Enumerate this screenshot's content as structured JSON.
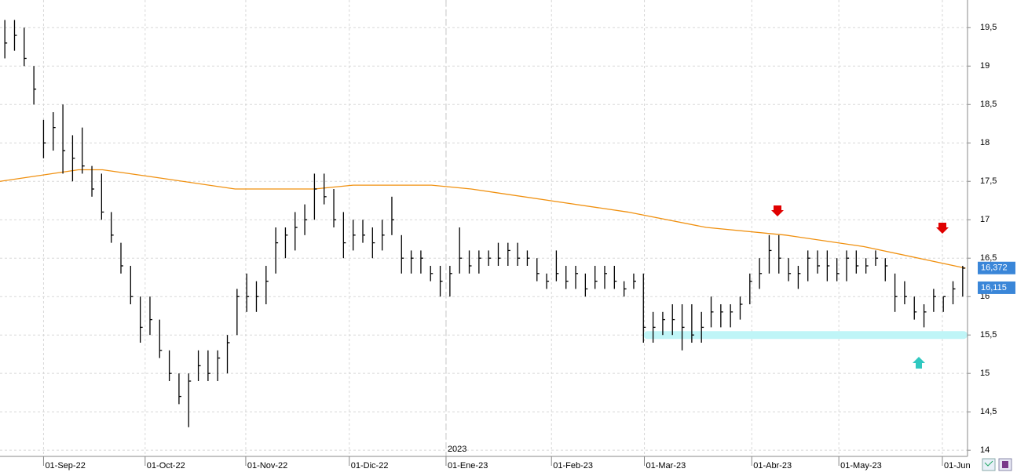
{
  "chart_data": {
    "type": "ohlc",
    "xlim": [
      -0.5,
      99.5
    ],
    "ylim": [
      13.92,
      19.86
    ],
    "yticks": [
      14,
      {
        "value": 14.5,
        "label": "14,5"
      },
      15,
      {
        "value": 15.5,
        "label": "15,5"
      },
      16,
      {
        "value": 16.5,
        "label": "16,5"
      },
      17,
      {
        "value": 17.5,
        "label": "17,5"
      },
      18,
      {
        "value": 18.5,
        "label": "18,5"
      },
      19,
      {
        "value": 19.5,
        "label": "19,5"
      }
    ],
    "xticks": [
      {
        "value": 4,
        "label": "01-Sep-22"
      },
      {
        "value": 14.5,
        "label": "01-Oct-22"
      },
      {
        "value": 24.9,
        "label": "01-Nov-22"
      },
      {
        "value": 35.6,
        "label": "01-Dic-22"
      },
      {
        "value": 45.6,
        "label": "01-Ene-23"
      },
      {
        "value": 56.5,
        "label": "01-Feb-23"
      },
      {
        "value": 66.1,
        "label": "01-Mar-23"
      },
      {
        "value": 77.2,
        "label": "01-Abr-23"
      },
      {
        "value": 86.2,
        "label": "01-May-23"
      },
      {
        "value": 96.9,
        "label": "01-Jun"
      }
    ],
    "year_marker": {
      "value": 45.6,
      "label": "2023"
    },
    "grid": true,
    "color": "#000000",
    "highs": [
      19.6,
      19.6,
      19.5,
      19.0,
      18.3,
      18.4,
      18.5,
      18.1,
      18.2,
      17.7,
      17.6,
      17.1,
      16.7,
      16.4,
      16.0,
      16.0,
      15.7,
      15.3,
      15.0,
      15.0,
      15.3,
      15.3,
      15.3,
      15.5,
      16.1,
      16.3,
      16.2,
      16.4,
      16.9,
      16.9,
      17.1,
      17.2,
      17.6,
      17.6,
      17.4,
      17.1,
      17.0,
      17.0,
      16.9,
      17.0,
      17.3,
      16.8,
      16.6,
      16.6,
      16.4,
      16.4,
      16.4,
      16.9,
      16.6,
      16.6,
      16.6,
      16.7,
      16.7,
      16.7,
      16.6,
      16.5,
      16.3,
      16.6,
      16.4,
      16.4,
      16.3,
      16.4,
      16.4,
      16.4,
      16.2,
      16.3,
      16.3,
      15.8,
      15.8,
      15.9,
      15.9,
      15.9,
      15.8,
      16.0,
      15.9,
      15.9,
      16.0,
      16.3,
      16.5,
      16.8,
      16.8,
      16.5,
      16.4,
      16.6,
      16.6,
      16.6,
      16.5,
      16.6,
      16.6,
      16.5,
      16.6,
      16.5,
      16.3,
      16.2,
      16.0,
      15.9,
      16.1,
      16.0,
      16.2,
      16.4
    ],
    "lows": [
      19.1,
      19.2,
      19.0,
      18.5,
      17.8,
      17.9,
      17.6,
      17.5,
      17.6,
      17.3,
      17.0,
      16.7,
      16.3,
      15.9,
      15.4,
      15.5,
      15.2,
      14.9,
      14.6,
      14.3,
      14.9,
      14.9,
      14.9,
      15.0,
      15.5,
      15.8,
      15.8,
      15.9,
      16.3,
      16.5,
      16.6,
      16.8,
      17.0,
      17.2,
      16.9,
      16.5,
      16.6,
      16.7,
      16.5,
      16.6,
      16.8,
      16.3,
      16.3,
      16.3,
      16.2,
      16.0,
      16.0,
      16.3,
      16.3,
      16.3,
      16.4,
      16.4,
      16.4,
      16.4,
      16.4,
      16.2,
      16.1,
      16.2,
      16.1,
      16.1,
      16.0,
      16.1,
      16.1,
      16.1,
      16.0,
      16.1,
      15.4,
      15.4,
      15.5,
      15.5,
      15.3,
      15.4,
      15.4,
      15.6,
      15.6,
      15.6,
      15.7,
      15.9,
      16.1,
      16.3,
      16.3,
      16.2,
      16.1,
      16.2,
      16.3,
      16.2,
      16.2,
      16.2,
      16.3,
      16.3,
      16.4,
      16.2,
      15.8,
      15.9,
      15.7,
      15.6,
      15.8,
      15.8,
      15.9,
      16.0
    ],
    "values": [
      19.3,
      19.4,
      19.1,
      18.7,
      18.0,
      18.2,
      17.9,
      17.8,
      17.7,
      17.4,
      17.1,
      16.8,
      16.4,
      16.0,
      15.6,
      15.7,
      15.3,
      15.0,
      14.7,
      14.9,
      15.1,
      15.0,
      15.2,
      15.4,
      16.0,
      16.0,
      16.0,
      16.2,
      16.7,
      16.8,
      16.9,
      17.0,
      17.4,
      17.3,
      17.0,
      16.7,
      16.8,
      16.8,
      16.7,
      16.8,
      17.0,
      16.5,
      16.5,
      16.5,
      16.3,
      16.2,
      16.3,
      16.5,
      16.4,
      16.5,
      16.5,
      16.5,
      16.6,
      16.5,
      16.5,
      16.3,
      16.2,
      16.3,
      16.2,
      16.3,
      16.1,
      16.2,
      16.3,
      16.2,
      16.1,
      16.2,
      15.6,
      15.6,
      15.7,
      15.7,
      15.6,
      15.5,
      15.6,
      15.8,
      15.8,
      15.8,
      15.9,
      16.2,
      16.3,
      16.6,
      16.5,
      16.3,
      16.3,
      16.5,
      16.4,
      16.4,
      16.3,
      16.5,
      16.4,
      16.4,
      16.5,
      16.4,
      16.0,
      16.0,
      15.8,
      15.8,
      16.0,
      16.0,
      16.1,
      16.37
    ],
    "moving_average": {
      "color": "#f0900f",
      "x": [
        -0.5,
        7.6,
        10.1,
        15.7,
        23.8,
        32,
        36,
        44.1,
        48.2,
        56.3,
        64.4,
        72.5,
        80.7,
        88.8,
        99.3
      ],
      "values": [
        17.5,
        17.65,
        17.65,
        17.55,
        17.4,
        17.4,
        17.45,
        17.45,
        17.4,
        17.25,
        17.1,
        16.9,
        16.8,
        16.65,
        16.37
      ]
    },
    "band": {
      "color": "#bff5f7",
      "value": 15.5,
      "x": [
        66,
        99.5
      ]
    },
    "price_labels": [
      {
        "value": 16.372,
        "label": "16,372"
      },
      {
        "value": 16.115,
        "label": "16,115"
      }
    ]
  }
}
